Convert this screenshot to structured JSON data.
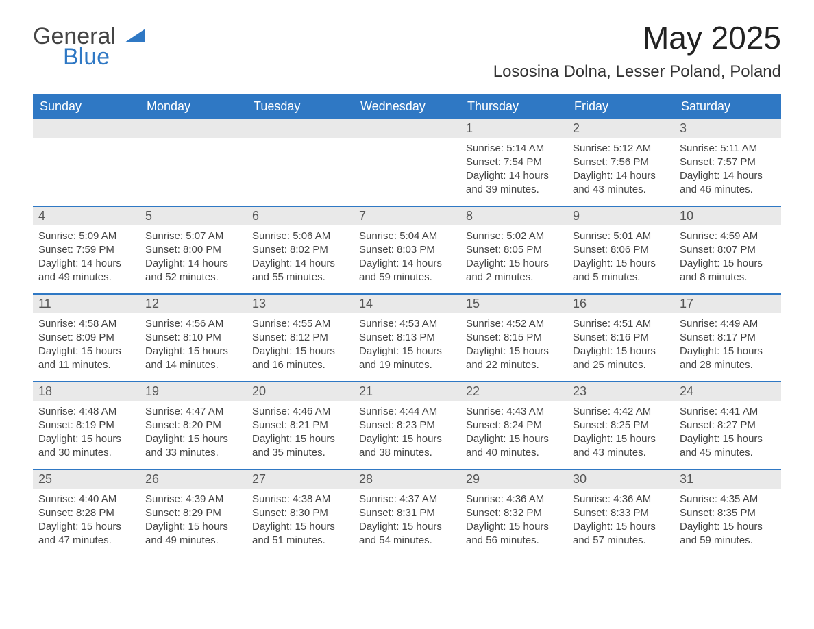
{
  "brand": {
    "word1": "General",
    "word2": "Blue",
    "accent_color": "#2f78c4"
  },
  "title": "May 2025",
  "location": "Lososina Dolna, Lesser Poland, Poland",
  "colors": {
    "header_bg": "#2f78c4",
    "header_text": "#ffffff",
    "daynum_bg": "#e9e9e9",
    "week_divider": "#2f78c4",
    "body_text": "#444444",
    "page_bg": "#ffffff"
  },
  "weekdays": [
    "Sunday",
    "Monday",
    "Tuesday",
    "Wednesday",
    "Thursday",
    "Friday",
    "Saturday"
  ],
  "weeks": [
    [
      {
        "blank": true
      },
      {
        "blank": true
      },
      {
        "blank": true
      },
      {
        "blank": true
      },
      {
        "num": "1",
        "sunrise": "Sunrise: 5:14 AM",
        "sunset": "Sunset: 7:54 PM",
        "dl1": "Daylight: 14 hours",
        "dl2": "and 39 minutes."
      },
      {
        "num": "2",
        "sunrise": "Sunrise: 5:12 AM",
        "sunset": "Sunset: 7:56 PM",
        "dl1": "Daylight: 14 hours",
        "dl2": "and 43 minutes."
      },
      {
        "num": "3",
        "sunrise": "Sunrise: 5:11 AM",
        "sunset": "Sunset: 7:57 PM",
        "dl1": "Daylight: 14 hours",
        "dl2": "and 46 minutes."
      }
    ],
    [
      {
        "num": "4",
        "sunrise": "Sunrise: 5:09 AM",
        "sunset": "Sunset: 7:59 PM",
        "dl1": "Daylight: 14 hours",
        "dl2": "and 49 minutes."
      },
      {
        "num": "5",
        "sunrise": "Sunrise: 5:07 AM",
        "sunset": "Sunset: 8:00 PM",
        "dl1": "Daylight: 14 hours",
        "dl2": "and 52 minutes."
      },
      {
        "num": "6",
        "sunrise": "Sunrise: 5:06 AM",
        "sunset": "Sunset: 8:02 PM",
        "dl1": "Daylight: 14 hours",
        "dl2": "and 55 minutes."
      },
      {
        "num": "7",
        "sunrise": "Sunrise: 5:04 AM",
        "sunset": "Sunset: 8:03 PM",
        "dl1": "Daylight: 14 hours",
        "dl2": "and 59 minutes."
      },
      {
        "num": "8",
        "sunrise": "Sunrise: 5:02 AM",
        "sunset": "Sunset: 8:05 PM",
        "dl1": "Daylight: 15 hours",
        "dl2": "and 2 minutes."
      },
      {
        "num": "9",
        "sunrise": "Sunrise: 5:01 AM",
        "sunset": "Sunset: 8:06 PM",
        "dl1": "Daylight: 15 hours",
        "dl2": "and 5 minutes."
      },
      {
        "num": "10",
        "sunrise": "Sunrise: 4:59 AM",
        "sunset": "Sunset: 8:07 PM",
        "dl1": "Daylight: 15 hours",
        "dl2": "and 8 minutes."
      }
    ],
    [
      {
        "num": "11",
        "sunrise": "Sunrise: 4:58 AM",
        "sunset": "Sunset: 8:09 PM",
        "dl1": "Daylight: 15 hours",
        "dl2": "and 11 minutes."
      },
      {
        "num": "12",
        "sunrise": "Sunrise: 4:56 AM",
        "sunset": "Sunset: 8:10 PM",
        "dl1": "Daylight: 15 hours",
        "dl2": "and 14 minutes."
      },
      {
        "num": "13",
        "sunrise": "Sunrise: 4:55 AM",
        "sunset": "Sunset: 8:12 PM",
        "dl1": "Daylight: 15 hours",
        "dl2": "and 16 minutes."
      },
      {
        "num": "14",
        "sunrise": "Sunrise: 4:53 AM",
        "sunset": "Sunset: 8:13 PM",
        "dl1": "Daylight: 15 hours",
        "dl2": "and 19 minutes."
      },
      {
        "num": "15",
        "sunrise": "Sunrise: 4:52 AM",
        "sunset": "Sunset: 8:15 PM",
        "dl1": "Daylight: 15 hours",
        "dl2": "and 22 minutes."
      },
      {
        "num": "16",
        "sunrise": "Sunrise: 4:51 AM",
        "sunset": "Sunset: 8:16 PM",
        "dl1": "Daylight: 15 hours",
        "dl2": "and 25 minutes."
      },
      {
        "num": "17",
        "sunrise": "Sunrise: 4:49 AM",
        "sunset": "Sunset: 8:17 PM",
        "dl1": "Daylight: 15 hours",
        "dl2": "and 28 minutes."
      }
    ],
    [
      {
        "num": "18",
        "sunrise": "Sunrise: 4:48 AM",
        "sunset": "Sunset: 8:19 PM",
        "dl1": "Daylight: 15 hours",
        "dl2": "and 30 minutes."
      },
      {
        "num": "19",
        "sunrise": "Sunrise: 4:47 AM",
        "sunset": "Sunset: 8:20 PM",
        "dl1": "Daylight: 15 hours",
        "dl2": "and 33 minutes."
      },
      {
        "num": "20",
        "sunrise": "Sunrise: 4:46 AM",
        "sunset": "Sunset: 8:21 PM",
        "dl1": "Daylight: 15 hours",
        "dl2": "and 35 minutes."
      },
      {
        "num": "21",
        "sunrise": "Sunrise: 4:44 AM",
        "sunset": "Sunset: 8:23 PM",
        "dl1": "Daylight: 15 hours",
        "dl2": "and 38 minutes."
      },
      {
        "num": "22",
        "sunrise": "Sunrise: 4:43 AM",
        "sunset": "Sunset: 8:24 PM",
        "dl1": "Daylight: 15 hours",
        "dl2": "and 40 minutes."
      },
      {
        "num": "23",
        "sunrise": "Sunrise: 4:42 AM",
        "sunset": "Sunset: 8:25 PM",
        "dl1": "Daylight: 15 hours",
        "dl2": "and 43 minutes."
      },
      {
        "num": "24",
        "sunrise": "Sunrise: 4:41 AM",
        "sunset": "Sunset: 8:27 PM",
        "dl1": "Daylight: 15 hours",
        "dl2": "and 45 minutes."
      }
    ],
    [
      {
        "num": "25",
        "sunrise": "Sunrise: 4:40 AM",
        "sunset": "Sunset: 8:28 PM",
        "dl1": "Daylight: 15 hours",
        "dl2": "and 47 minutes."
      },
      {
        "num": "26",
        "sunrise": "Sunrise: 4:39 AM",
        "sunset": "Sunset: 8:29 PM",
        "dl1": "Daylight: 15 hours",
        "dl2": "and 49 minutes."
      },
      {
        "num": "27",
        "sunrise": "Sunrise: 4:38 AM",
        "sunset": "Sunset: 8:30 PM",
        "dl1": "Daylight: 15 hours",
        "dl2": "and 51 minutes."
      },
      {
        "num": "28",
        "sunrise": "Sunrise: 4:37 AM",
        "sunset": "Sunset: 8:31 PM",
        "dl1": "Daylight: 15 hours",
        "dl2": "and 54 minutes."
      },
      {
        "num": "29",
        "sunrise": "Sunrise: 4:36 AM",
        "sunset": "Sunset: 8:32 PM",
        "dl1": "Daylight: 15 hours",
        "dl2": "and 56 minutes."
      },
      {
        "num": "30",
        "sunrise": "Sunrise: 4:36 AM",
        "sunset": "Sunset: 8:33 PM",
        "dl1": "Daylight: 15 hours",
        "dl2": "and 57 minutes."
      },
      {
        "num": "31",
        "sunrise": "Sunrise: 4:35 AM",
        "sunset": "Sunset: 8:35 PM",
        "dl1": "Daylight: 15 hours",
        "dl2": "and 59 minutes."
      }
    ]
  ]
}
